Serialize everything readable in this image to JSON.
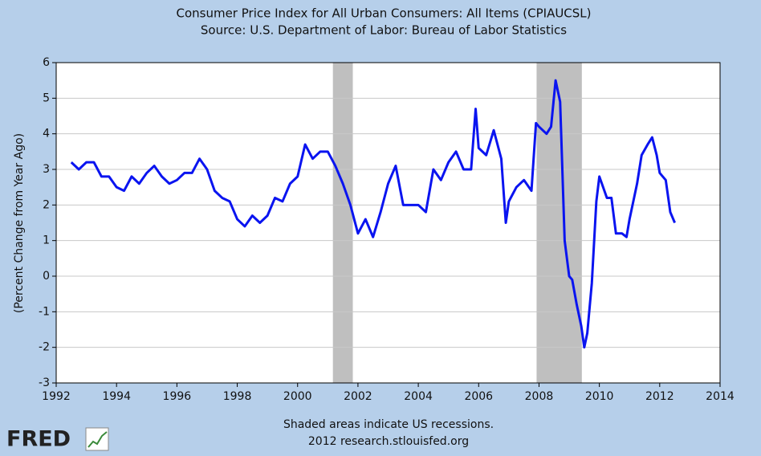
{
  "chart_data": {
    "type": "line",
    "title": "Consumer Price Index for All Urban Consumers: All Items (CPIAUCSL)",
    "subtitle": "Source: U.S. Department of Labor: Bureau of Labor Statistics",
    "y_label": "(Percent Change from Year Ago)",
    "note": "Shaded areas indicate US recessions.",
    "credit": "2012 research.stlouisfed.org",
    "logo": "FRED",
    "xlim": [
      1992,
      2014
    ],
    "xticks": [
      1992,
      1994,
      1996,
      1998,
      2000,
      2002,
      2004,
      2006,
      2008,
      2010,
      2012,
      2014
    ],
    "ylim": [
      -3,
      6
    ],
    "yticks": [
      -3,
      -2,
      -1,
      0,
      1,
      2,
      3,
      4,
      5,
      6
    ],
    "grid": true,
    "recession_color": "#bfbfbf",
    "recessions": [
      [
        2001.17,
        2001.83
      ],
      [
        2007.92,
        2009.42
      ]
    ],
    "series": [
      {
        "name": "CPIAUCSL",
        "color": "#0a14f0",
        "x": [
          1992.5,
          1992.75,
          1993.0,
          1993.25,
          1993.5,
          1993.75,
          1994.0,
          1994.25,
          1994.5,
          1994.75,
          1995.0,
          1995.25,
          1995.5,
          1995.75,
          1996.0,
          1996.25,
          1996.5,
          1996.75,
          1997.0,
          1997.25,
          1997.5,
          1997.75,
          1998.0,
          1998.25,
          1998.5,
          1998.75,
          1999.0,
          1999.25,
          1999.5,
          1999.75,
          2000.0,
          2000.25,
          2000.5,
          2000.75,
          2001.0,
          2001.25,
          2001.5,
          2001.75,
          2002.0,
          2002.25,
          2002.5,
          2002.75,
          2003.0,
          2003.25,
          2003.5,
          2003.75,
          2004.0,
          2004.25,
          2004.5,
          2004.75,
          2005.0,
          2005.25,
          2005.5,
          2005.75,
          2005.9,
          2006.0,
          2006.25,
          2006.5,
          2006.75,
          2006.9,
          2007.0,
          2007.25,
          2007.5,
          2007.75,
          2007.9,
          2008.0,
          2008.25,
          2008.4,
          2008.55,
          2008.7,
          2008.85,
          2009.0,
          2009.1,
          2009.25,
          2009.4,
          2009.5,
          2009.6,
          2009.75,
          2009.9,
          2010.0,
          2010.25,
          2010.4,
          2010.55,
          2010.75,
          2010.9,
          2011.0,
          2011.25,
          2011.4,
          2011.6,
          2011.75,
          2011.9,
          2012.0,
          2012.2,
          2012.35,
          2012.5
        ],
        "values": [
          3.2,
          3.0,
          3.2,
          3.2,
          2.8,
          2.8,
          2.5,
          2.4,
          2.8,
          2.6,
          2.9,
          3.1,
          2.8,
          2.6,
          2.7,
          2.9,
          2.9,
          3.3,
          3.0,
          2.4,
          2.2,
          2.1,
          1.6,
          1.4,
          1.7,
          1.5,
          1.7,
          2.2,
          2.1,
          2.6,
          2.8,
          3.7,
          3.3,
          3.5,
          3.5,
          3.1,
          2.6,
          2.0,
          1.2,
          1.6,
          1.1,
          1.8,
          2.6,
          3.1,
          2.0,
          2.0,
          2.0,
          1.8,
          3.0,
          2.7,
          3.2,
          3.5,
          3.0,
          3.0,
          4.7,
          3.6,
          3.4,
          4.1,
          3.3,
          1.5,
          2.1,
          2.5,
          2.7,
          2.4,
          4.3,
          4.2,
          4.0,
          4.2,
          5.5,
          4.9,
          1.0,
          0.0,
          -0.1,
          -0.8,
          -1.4,
          -2.0,
          -1.6,
          -0.2,
          2.1,
          2.8,
          2.2,
          2.2,
          1.2,
          1.2,
          1.1,
          1.6,
          2.6,
          3.4,
          3.7,
          3.9,
          3.4,
          2.9,
          2.7,
          1.8,
          1.5
        ]
      }
    ]
  }
}
